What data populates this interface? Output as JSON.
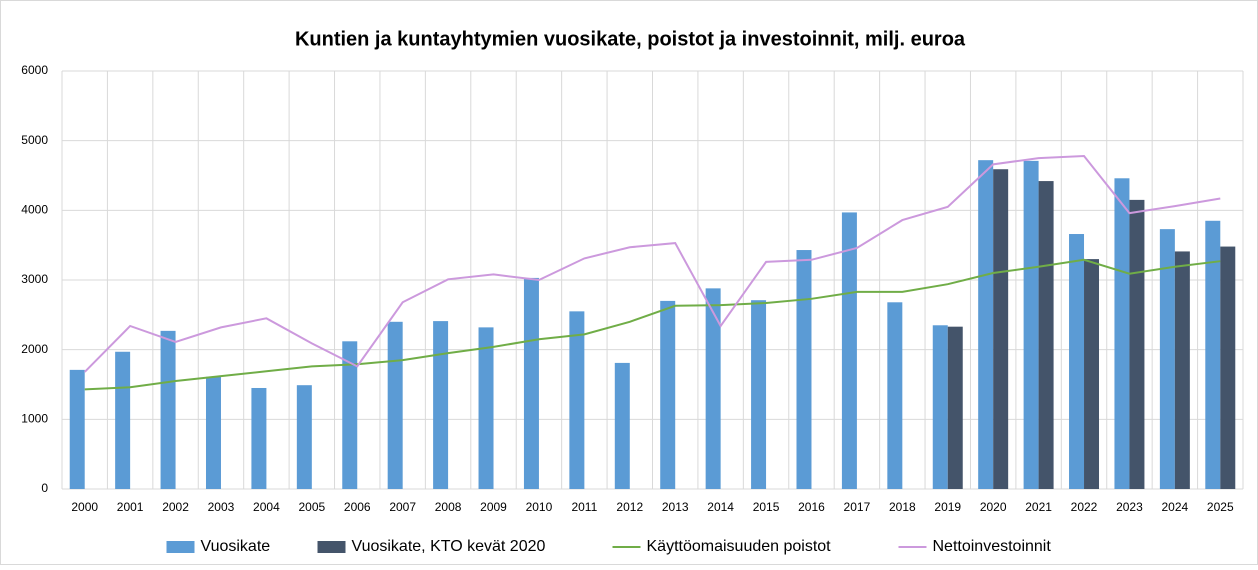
{
  "chart_data": {
    "type": "bar",
    "title": "Kuntien ja kuntayhtymien vuosikate, poistot ja investoinnit, milj. euroa",
    "categories": [
      "2000",
      "2001",
      "2002",
      "2003",
      "2004",
      "2005",
      "2006",
      "2007",
      "2008",
      "2009",
      "2010",
      "2011",
      "2012",
      "2013",
      "2014",
      "2015",
      "2016",
      "2017",
      "2018",
      "2019",
      "2020",
      "2021",
      "2022",
      "2023",
      "2024",
      "2025"
    ],
    "series": [
      {
        "name": "Vuosikate",
        "type": "bar",
        "color": "#5b9bd5",
        "values": [
          1710,
          1970,
          2270,
          1610,
          1450,
          1490,
          2120,
          2400,
          2410,
          2320,
          3030,
          2550,
          1810,
          2700,
          2880,
          2710,
          3430,
          3970,
          2680,
          2350,
          4720,
          4710,
          3660,
          4460,
          3730,
          3850
        ]
      },
      {
        "name": "Vuosikate, KTO kevät 2020",
        "type": "bar",
        "color": "#44546a",
        "values": [
          null,
          null,
          null,
          null,
          null,
          null,
          null,
          null,
          null,
          null,
          null,
          null,
          null,
          null,
          null,
          null,
          null,
          null,
          null,
          2330,
          4590,
          4420,
          3300,
          4150,
          3410,
          3480
        ]
      },
      {
        "name": "Käyttöomaisuuden poistot",
        "type": "line",
        "color": "#70ad47",
        "values": [
          1430,
          1460,
          1550,
          1620,
          1690,
          1760,
          1790,
          1850,
          1950,
          2040,
          2150,
          2220,
          2400,
          2630,
          2640,
          2670,
          2730,
          2830,
          2830,
          2940,
          3100,
          3190,
          3290,
          3090,
          3190,
          3270
        ]
      },
      {
        "name": "Nettoinvestoinnit",
        "type": "line",
        "color": "#cc99dd",
        "values": [
          1680,
          2340,
          2110,
          2320,
          2450,
          2090,
          1760,
          2680,
          3010,
          3080,
          3000,
          3310,
          3470,
          3530,
          2340,
          3260,
          3290,
          3460,
          3860,
          4050,
          4660,
          4750,
          4780,
          3960,
          4060,
          4170
        ]
      }
    ],
    "ylim": [
      0,
      6000
    ],
    "yticks": [
      0,
      1000,
      2000,
      3000,
      4000,
      5000,
      6000
    ],
    "grid": true,
    "legend": "bottom"
  }
}
